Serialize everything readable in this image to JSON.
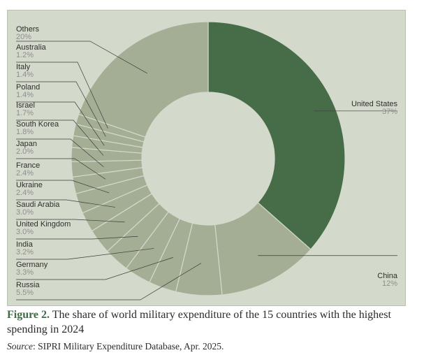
{
  "chart_data": {
    "type": "pie",
    "donut": true,
    "unit": "%",
    "slices": [
      {
        "label": "United States",
        "value": 37,
        "display": "37%",
        "color": "#466d47"
      },
      {
        "label": "China",
        "value": 12,
        "display": "12%",
        "color": "#a3ae94"
      },
      {
        "label": "Russia",
        "value": 5.5,
        "display": "5.5%",
        "color": "#a3ae94"
      },
      {
        "label": "Germany",
        "value": 3.3,
        "display": "3.3%",
        "color": "#a3ae94"
      },
      {
        "label": "India",
        "value": 3.2,
        "display": "3.2%",
        "color": "#a3ae94"
      },
      {
        "label": "United Kingdom",
        "value": 3.0,
        "display": "3.0%",
        "color": "#a3ae94"
      },
      {
        "label": "Saudi Arabia",
        "value": 3.0,
        "display": "3.0%",
        "color": "#a3ae94"
      },
      {
        "label": "Ukraine",
        "value": 2.4,
        "display": "2.4%",
        "color": "#a3ae94"
      },
      {
        "label": "France",
        "value": 2.4,
        "display": "2.4%",
        "color": "#a3ae94"
      },
      {
        "label": "Japan",
        "value": 2.0,
        "display": "2.0%",
        "color": "#a3ae94"
      },
      {
        "label": "South Korea",
        "value": 1.8,
        "display": "1.8%",
        "color": "#a3ae94"
      },
      {
        "label": "Israel",
        "value": 1.7,
        "display": "1.7%",
        "color": "#a3ae94"
      },
      {
        "label": "Poland",
        "value": 1.4,
        "display": "1.4%",
        "color": "#a3ae94"
      },
      {
        "label": "Italy",
        "value": 1.4,
        "display": "1.4%",
        "color": "#a3ae94"
      },
      {
        "label": "Australia",
        "value": 1.2,
        "display": "1.2%",
        "color": "#a3ae94"
      },
      {
        "label": "Others",
        "value": 20,
        "display": "20%",
        "color": "#a3ae94"
      }
    ],
    "legend": "none",
    "data_labels": "outside with leader lines"
  },
  "caption": {
    "label": "Figure 2.",
    "text": " The share of world military expenditure of the 15 countries with the highest spending in 2024"
  },
  "source": {
    "label": "Source",
    "text": ": SIPRI Military Expenditure Database, Apr. 2025."
  },
  "colors": {
    "panel_background": "#d3d9cb",
    "highlight": "#466d47",
    "other_slices": "#a3ae94",
    "caption_accent": "#3f6b46"
  }
}
